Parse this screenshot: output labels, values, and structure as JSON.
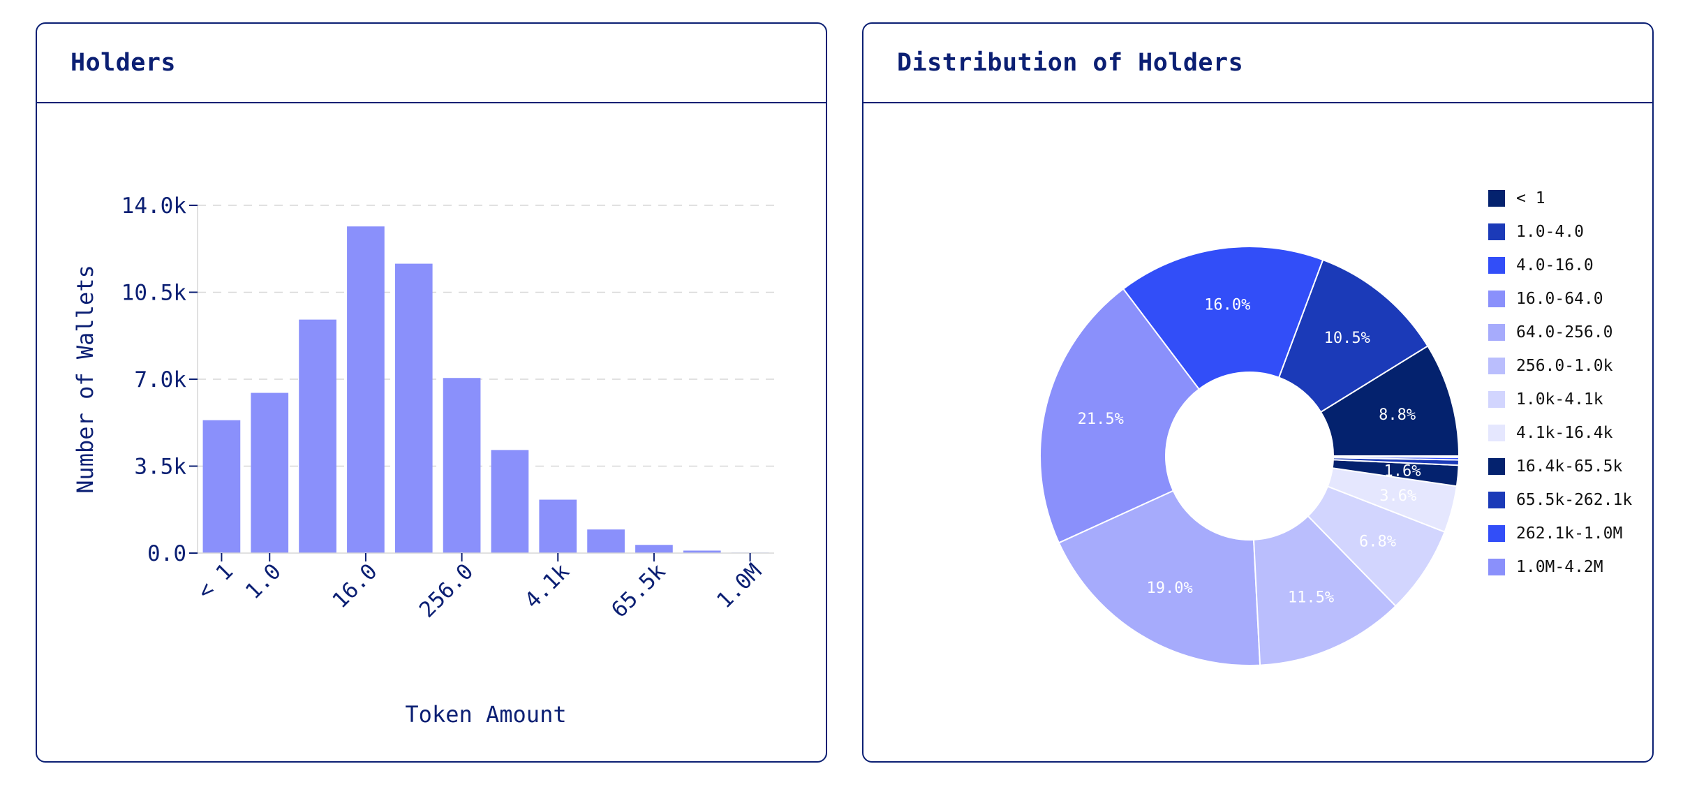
{
  "cards": {
    "holders": {
      "title": "Holders"
    },
    "distribution": {
      "title": "Distribution of Holders"
    }
  },
  "chart_data": [
    {
      "type": "bar",
      "title": "Holders",
      "xlabel": "Token Amount",
      "ylabel": "Number of Wallets",
      "ylim": [
        0,
        14000
      ],
      "y_ticks": [
        {
          "value": 0,
          "label": "0.0"
        },
        {
          "value": 3500,
          "label": "3.5k"
        },
        {
          "value": 7000,
          "label": "7.0k"
        },
        {
          "value": 10500,
          "label": "10.5k"
        },
        {
          "value": 14000,
          "label": "14.0k"
        }
      ],
      "x_tick_labels": [
        {
          "index": 0,
          "label": "< 1"
        },
        {
          "index": 1,
          "label": "1.0"
        },
        {
          "index": 3,
          "label": "16.0"
        },
        {
          "index": 5,
          "label": "256.0"
        },
        {
          "index": 7,
          "label": "4.1k"
        },
        {
          "index": 9,
          "label": "65.5k"
        },
        {
          "index": 11,
          "label": "1.0M"
        }
      ],
      "values": [
        5350,
        6450,
        9400,
        13150,
        11650,
        7050,
        4150,
        2150,
        950,
        330,
        100,
        20
      ],
      "grid": "horizontal-dashed",
      "colors": {
        "bar": "#8a90fb",
        "axis": "#0b1f73",
        "grid": "#d7d7d7"
      }
    },
    {
      "type": "pie",
      "title": "Distribution of Holders",
      "donut": true,
      "legend_position": "right",
      "categories": [
        "< 1",
        "1.0-4.0",
        "4.0-16.0",
        "16.0-64.0",
        "64.0-256.0",
        "256.0-1.0k",
        "1.0k-4.1k",
        "4.1k-16.4k",
        "16.4k-65.5k",
        "65.5k-262.1k",
        "262.1k-1.0M",
        "1.0M-4.2M"
      ],
      "values": [
        8.8,
        10.5,
        16.0,
        21.5,
        19.0,
        11.5,
        6.8,
        3.6,
        1.6,
        0.4,
        0.2,
        0.1
      ],
      "labels": [
        "8.8%",
        "10.5%",
        "16.0%",
        "21.5%",
        "19.0%",
        "11.5%",
        "6.8%",
        "3.6%",
        "1.6%",
        "",
        "",
        ""
      ],
      "colors": [
        "#04226e",
        "#1b3ab8",
        "#324ef8",
        "#8a90fb",
        "#a6abfc",
        "#babefd",
        "#d2d5fe",
        "#e5e7fe",
        "#04226e",
        "#1b3ab8",
        "#324ef8",
        "#8a90fb"
      ],
      "label_colors": [
        "#ffffff",
        "#ffffff",
        "#ffffff",
        "#ffffff",
        "#ffffff",
        "#ffffff",
        "#ffffff",
        "#ffffff",
        "#ffffff",
        "#ffffff",
        "#ffffff",
        "#ffffff"
      ]
    }
  ]
}
